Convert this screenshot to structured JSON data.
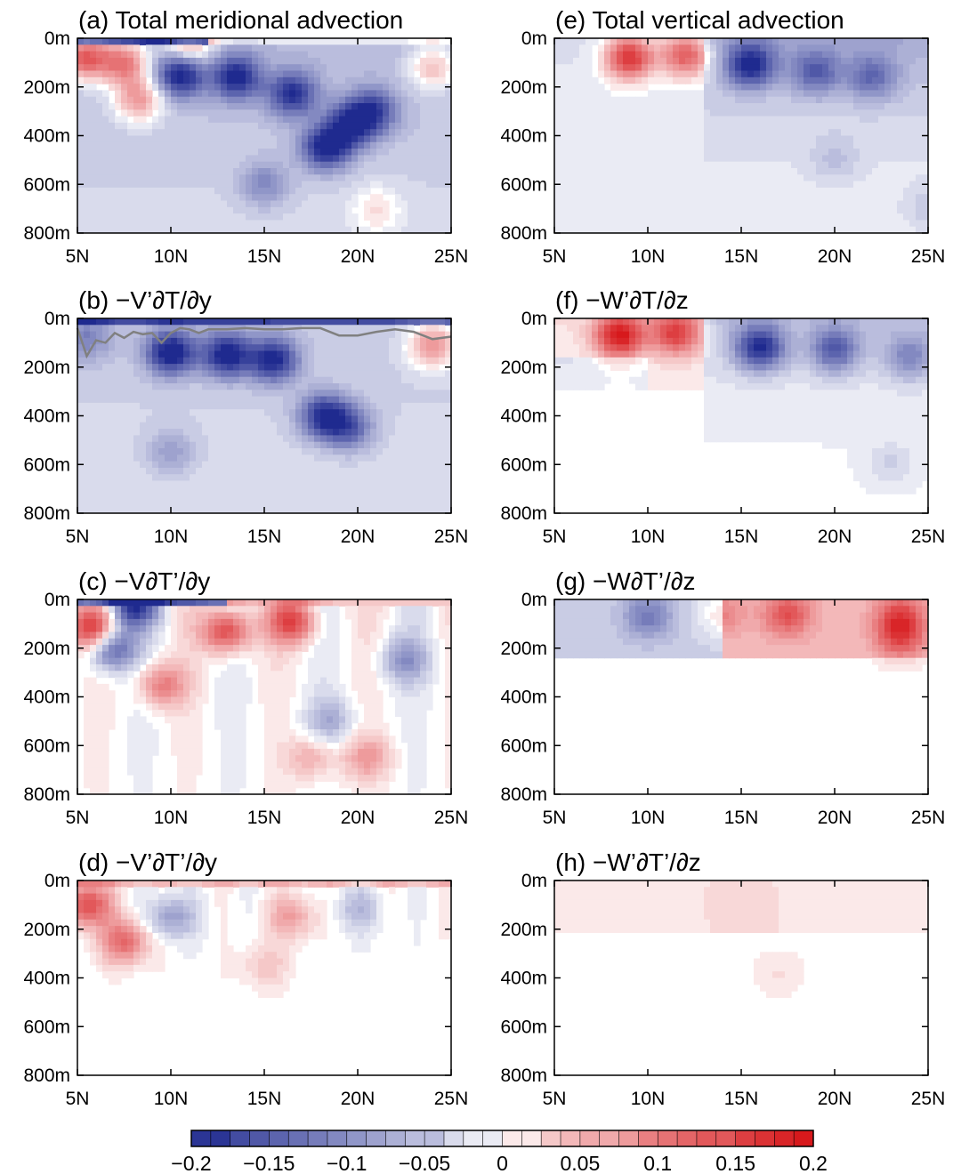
{
  "figure": {
    "colorbar": {
      "min": -0.2,
      "max": 0.2,
      "step": 0.0125,
      "tick_values": [
        -0.2,
        -0.15,
        -0.1,
        -0.05,
        0,
        0.05,
        0.1,
        0.15,
        0.2
      ],
      "tick_labels": [
        "−0.2",
        "−0.15",
        "−0.1",
        "−0.05",
        "0",
        "0.05",
        "0.1",
        "0.15",
        "0.2"
      ],
      "cmap": {
        "neg": "#1f2a8f",
        "mid": "#ffffff",
        "pos": "#d7191c"
      }
    }
  },
  "chart_data": [
    {
      "type": "heatmap",
      "title": "(a) Total meridional advection",
      "x": [
        5,
        10,
        15,
        20,
        25
      ],
      "x_tick_labels": [
        "5N",
        "10N",
        "15N",
        "20N",
        "25N"
      ],
      "y_tick_labels": [
        "0m",
        "200m",
        "400m",
        "600m",
        "800m"
      ],
      "xlim": [
        5,
        25
      ],
      "ylim": [
        0,
        800
      ],
      "features": [
        {
          "x": 7.5,
          "z": 100,
          "value": 0.15
        },
        {
          "x": 5.4,
          "z": 80,
          "value": 0.18
        },
        {
          "x": 8.3,
          "z": 250,
          "value": 0.12
        },
        {
          "x": 10.5,
          "z": 150,
          "value": -0.17
        },
        {
          "x": 13.5,
          "z": 160,
          "value": -0.16
        },
        {
          "x": 16.5,
          "z": 230,
          "value": -0.15
        },
        {
          "x": 18.3,
          "z": 450,
          "value": -0.17
        },
        {
          "x": 19.6,
          "z": 360,
          "value": -0.15
        },
        {
          "x": 20.8,
          "z": 300,
          "value": -0.13
        },
        {
          "x": 21.0,
          "z": 700,
          "value": 0.05
        },
        {
          "x": 24.0,
          "z": 120,
          "value": 0.09
        },
        {
          "x": 11.0,
          "z": 20,
          "value": 0.12
        },
        {
          "x": 15.0,
          "z": 600,
          "value": -0.07
        }
      ]
    },
    {
      "type": "heatmap",
      "title": "(e) Total vertical advection",
      "x": [
        5,
        10,
        15,
        20,
        25
      ],
      "x_tick_labels": [
        "5N",
        "10N",
        "15N",
        "20N",
        "25N"
      ],
      "y_tick_labels": [
        "0m",
        "200m",
        "400m",
        "600m",
        "800m"
      ],
      "xlim": [
        5,
        25
      ],
      "ylim": [
        0,
        800
      ],
      "features": [
        {
          "x": 9.0,
          "z": 80,
          "value": 0.19
        },
        {
          "x": 12.0,
          "z": 70,
          "value": 0.15
        },
        {
          "x": 15.5,
          "z": 110,
          "value": -0.16
        },
        {
          "x": 19.0,
          "z": 140,
          "value": -0.1
        },
        {
          "x": 22.0,
          "z": 160,
          "value": -0.09
        },
        {
          "x": 20.0,
          "z": 500,
          "value": -0.03
        },
        {
          "x": 25.0,
          "z": 700,
          "value": -0.03
        }
      ]
    },
    {
      "type": "heatmap",
      "title": "(b) −V’∂T/∂y",
      "x": [
        5,
        10,
        15,
        20,
        25
      ],
      "x_tick_labels": [
        "5N",
        "10N",
        "15N",
        "20N",
        "25N"
      ],
      "y_tick_labels": [
        "0m",
        "200m",
        "400m",
        "600m",
        "800m"
      ],
      "xlim": [
        5,
        25
      ],
      "ylim": [
        0,
        800
      ],
      "features": [
        {
          "x": 10.0,
          "z": 140,
          "value": -0.19
        },
        {
          "x": 13.0,
          "z": 150,
          "value": -0.18
        },
        {
          "x": 15.5,
          "z": 170,
          "value": -0.17
        },
        {
          "x": 18.2,
          "z": 400,
          "value": -0.16
        },
        {
          "x": 19.5,
          "z": 450,
          "value": -0.11
        },
        {
          "x": 24.0,
          "z": 110,
          "value": 0.12
        },
        {
          "x": 5.5,
          "z": 80,
          "value": -0.07
        },
        {
          "x": 10.0,
          "z": 550,
          "value": -0.05
        }
      ],
      "mixed_layer_line": {
        "x": [
          5,
          5.5,
          6,
          6.5,
          7,
          7.5,
          8,
          8.5,
          9,
          9.5,
          10,
          10.5,
          11,
          11.5,
          12,
          13,
          14,
          15,
          16,
          17,
          18,
          19,
          20,
          21,
          22,
          23,
          24,
          25
        ],
        "z": [
          40,
          155,
          90,
          100,
          60,
          80,
          55,
          65,
          60,
          100,
          60,
          40,
          45,
          60,
          45,
          45,
          40,
          45,
          45,
          40,
          40,
          70,
          70,
          55,
          45,
          55,
          85,
          75
        ]
      }
    },
    {
      "type": "heatmap",
      "title": "(f) −W’∂T/∂z",
      "x": [
        5,
        10,
        15,
        20,
        25
      ],
      "x_tick_labels": [
        "5N",
        "10N",
        "15N",
        "20N",
        "25N"
      ],
      "y_tick_labels": [
        "0m",
        "200m",
        "400m",
        "600m",
        "800m"
      ],
      "xlim": [
        5,
        25
      ],
      "ylim": [
        0,
        800
      ],
      "features": [
        {
          "x": 8.5,
          "z": 70,
          "value": 0.19
        },
        {
          "x": 11.5,
          "z": 60,
          "value": 0.15
        },
        {
          "x": 16.0,
          "z": 120,
          "value": -0.17
        },
        {
          "x": 20.0,
          "z": 130,
          "value": -0.12
        },
        {
          "x": 24.0,
          "z": 160,
          "value": -0.08
        },
        {
          "x": 23.0,
          "z": 600,
          "value": -0.03
        }
      ]
    },
    {
      "type": "heatmap",
      "title": "(c) −V∂T’/∂y",
      "x": [
        5,
        10,
        15,
        20,
        25
      ],
      "x_tick_labels": [
        "5N",
        "10N",
        "15N",
        "20N",
        "25N"
      ],
      "y_tick_labels": [
        "0m",
        "200m",
        "400m",
        "600m",
        "800m"
      ],
      "xlim": [
        5,
        25
      ],
      "ylim": [
        0,
        800
      ],
      "features": [
        {
          "x": 5.8,
          "z": 120,
          "value": 0.17
        },
        {
          "x": 6.8,
          "z": 200,
          "value": -0.15
        },
        {
          "x": 9.5,
          "z": 350,
          "value": 0.1
        },
        {
          "x": 13.0,
          "z": 130,
          "value": 0.16
        },
        {
          "x": 16.5,
          "z": 90,
          "value": 0.15
        },
        {
          "x": 17.5,
          "z": 650,
          "value": 0.06
        },
        {
          "x": 20.5,
          "z": 650,
          "value": 0.07
        },
        {
          "x": 8.0,
          "z": 25,
          "value": -0.18
        },
        {
          "x": 22.5,
          "z": 250,
          "value": -0.08
        },
        {
          "x": 18.5,
          "z": 500,
          "value": -0.06
        }
      ]
    },
    {
      "type": "heatmap",
      "title": "(g) −W∂T’/∂z",
      "x": [
        5,
        10,
        15,
        20,
        25
      ],
      "x_tick_labels": [
        "5N",
        "10N",
        "15N",
        "20N",
        "25N"
      ],
      "y_tick_labels": [
        "0m",
        "200m",
        "400m",
        "600m",
        "800m"
      ],
      "xlim": [
        5,
        25
      ],
      "ylim": [
        0,
        800
      ],
      "features": [
        {
          "x": 10.0,
          "z": 70,
          "value": -0.08
        },
        {
          "x": 17.5,
          "z": 60,
          "value": 0.1
        },
        {
          "x": 23.5,
          "z": 150,
          "value": 0.1
        },
        {
          "x": 23.5,
          "z": 60,
          "value": 0.09
        },
        {
          "x": 14.0,
          "z": 60,
          "value": 0.05
        }
      ]
    },
    {
      "type": "heatmap",
      "title": "(d) −V’∂T’/∂y",
      "x": [
        5,
        10,
        15,
        20,
        25
      ],
      "x_tick_labels": [
        "5N",
        "10N",
        "15N",
        "20N",
        "25N"
      ],
      "y_tick_labels": [
        "0m",
        "200m",
        "400m",
        "600m",
        "800m"
      ],
      "xlim": [
        5,
        25
      ],
      "ylim": [
        0,
        800
      ],
      "features": [
        {
          "x": 5.5,
          "z": 100,
          "value": 0.15
        },
        {
          "x": 7.5,
          "z": 250,
          "value": 0.12
        },
        {
          "x": 10.0,
          "z": 150,
          "value": -0.08
        },
        {
          "x": 16.5,
          "z": 150,
          "value": 0.07
        },
        {
          "x": 15.0,
          "z": 350,
          "value": 0.04
        },
        {
          "x": 20.0,
          "z": 120,
          "value": -0.05
        }
      ]
    },
    {
      "type": "heatmap",
      "title": "(h) −W’∂T’/∂z",
      "x": [
        5,
        10,
        15,
        20,
        25
      ],
      "x_tick_labels": [
        "5N",
        "10N",
        "15N",
        "20N",
        "25N"
      ],
      "y_tick_labels": [
        "0m",
        "200m",
        "400m",
        "600m",
        "800m"
      ],
      "xlim": [
        5,
        25
      ],
      "ylim": [
        0,
        800
      ],
      "features": [
        {
          "x": 15.0,
          "z": 100,
          "value": 0.02
        },
        {
          "x": 17.0,
          "z": 380,
          "value": 0.02
        },
        {
          "x": 15.0,
          "z": 100,
          "value": -0.01
        }
      ]
    }
  ]
}
